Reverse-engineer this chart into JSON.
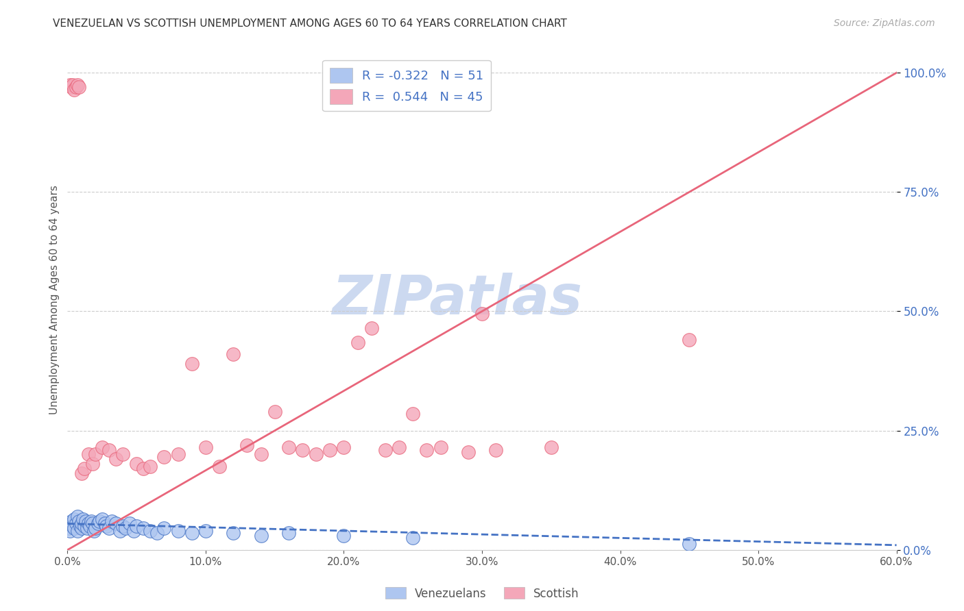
{
  "title": "VENEZUELAN VS SCOTTISH UNEMPLOYMENT AMONG AGES 60 TO 64 YEARS CORRELATION CHART",
  "source": "Source: ZipAtlas.com",
  "ylabel": "Unemployment Among Ages 60 to 64 years",
  "xlabel_venezuelans": "Venezuelans",
  "xlabel_scottish": "Scottish",
  "xlim": [
    0.0,
    0.6
  ],
  "ylim": [
    0.0,
    1.05
  ],
  "yticks": [
    0.0,
    0.25,
    0.5,
    0.75,
    1.0
  ],
  "ytick_labels": [
    "0.0%",
    "25.0%",
    "50.0%",
    "75.0%",
    "100.0%"
  ],
  "xticks": [
    0.0,
    0.1,
    0.2,
    0.3,
    0.4,
    0.5,
    0.6
  ],
  "xtick_labels": [
    "0.0%",
    "10.0%",
    "20.0%",
    "30.0%",
    "40.0%",
    "50.0%",
    "60.0%"
  ],
  "venezuelan_R": -0.322,
  "venezuelan_N": 51,
  "scottish_R": 0.544,
  "scottish_N": 45,
  "venezuelan_color": "#aec6f0",
  "scottish_color": "#f4a7b9",
  "venezuelan_line_color": "#4472c4",
  "scottish_line_color": "#e8657a",
  "watermark": "ZIPatlas",
  "watermark_color": "#ccd9f0",
  "venezuelan_x": [
    0.001,
    0.002,
    0.003,
    0.003,
    0.004,
    0.005,
    0.005,
    0.006,
    0.007,
    0.007,
    0.008,
    0.009,
    0.01,
    0.01,
    0.011,
    0.012,
    0.013,
    0.014,
    0.015,
    0.016,
    0.017,
    0.018,
    0.019,
    0.02,
    0.022,
    0.023,
    0.025,
    0.027,
    0.028,
    0.03,
    0.032,
    0.035,
    0.038,
    0.04,
    0.042,
    0.045,
    0.048,
    0.05,
    0.055,
    0.06,
    0.065,
    0.07,
    0.08,
    0.09,
    0.1,
    0.12,
    0.14,
    0.16,
    0.2,
    0.25,
    0.45
  ],
  "venezuelan_y": [
    0.045,
    0.04,
    0.055,
    0.06,
    0.05,
    0.045,
    0.065,
    0.055,
    0.04,
    0.07,
    0.06,
    0.05,
    0.045,
    0.055,
    0.065,
    0.05,
    0.06,
    0.045,
    0.055,
    0.05,
    0.06,
    0.055,
    0.04,
    0.045,
    0.055,
    0.06,
    0.065,
    0.055,
    0.05,
    0.045,
    0.06,
    0.055,
    0.04,
    0.05,
    0.045,
    0.055,
    0.04,
    0.05,
    0.045,
    0.04,
    0.035,
    0.045,
    0.04,
    0.035,
    0.04,
    0.035,
    0.03,
    0.035,
    0.03,
    0.025,
    0.012
  ],
  "scottish_x": [
    0.002,
    0.003,
    0.004,
    0.005,
    0.006,
    0.007,
    0.008,
    0.01,
    0.012,
    0.015,
    0.018,
    0.02,
    0.025,
    0.03,
    0.035,
    0.04,
    0.05,
    0.055,
    0.06,
    0.07,
    0.08,
    0.09,
    0.1,
    0.11,
    0.12,
    0.13,
    0.14,
    0.15,
    0.16,
    0.17,
    0.18,
    0.19,
    0.2,
    0.21,
    0.22,
    0.23,
    0.24,
    0.25,
    0.26,
    0.27,
    0.29,
    0.3,
    0.31,
    0.35,
    0.45
  ],
  "scottish_y": [
    0.975,
    0.97,
    0.975,
    0.965,
    0.97,
    0.975,
    0.97,
    0.16,
    0.17,
    0.2,
    0.18,
    0.2,
    0.215,
    0.21,
    0.19,
    0.2,
    0.18,
    0.17,
    0.175,
    0.195,
    0.2,
    0.39,
    0.215,
    0.175,
    0.41,
    0.22,
    0.2,
    0.29,
    0.215,
    0.21,
    0.2,
    0.21,
    0.215,
    0.435,
    0.465,
    0.21,
    0.215,
    0.285,
    0.21,
    0.215,
    0.205,
    0.495,
    0.21,
    0.215,
    0.44
  ],
  "scottish_line_x": [
    0.0,
    0.6
  ],
  "scottish_line_y": [
    0.0,
    1.0
  ],
  "venezuelan_line_x": [
    0.0,
    0.6
  ],
  "venezuelan_line_y": [
    0.055,
    0.01
  ]
}
